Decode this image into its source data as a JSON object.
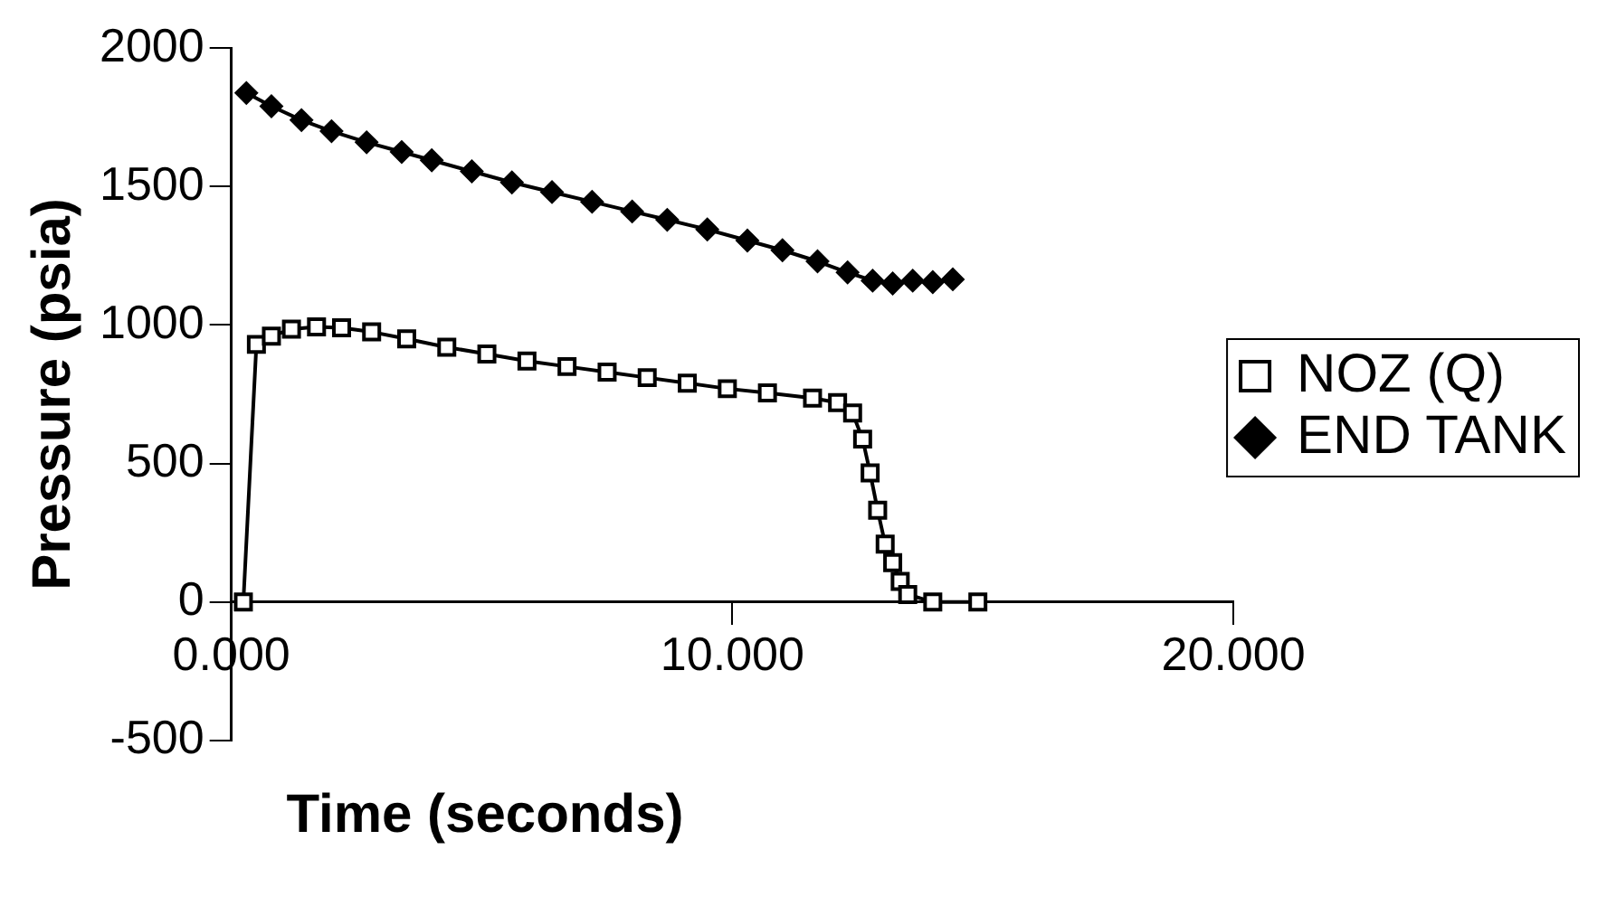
{
  "chart_data": {
    "type": "line",
    "xlabel": "Time (seconds)",
    "ylabel": "Pressure (psia)",
    "xlim": [
      0,
      20
    ],
    "xticks": [
      {
        "value": 0,
        "label": "0.000"
      },
      {
        "value": 10,
        "label": "10.000"
      },
      {
        "value": 20,
        "label": "20.000"
      }
    ],
    "ylim": [
      -500,
      2000
    ],
    "yticks": [
      -500,
      0,
      500,
      1000,
      1500,
      2000
    ],
    "grid": false,
    "legend": "right",
    "series": [
      {
        "name": "NOZ (Q)",
        "color": "#000000",
        "marker": "square",
        "x": [
          0.24,
          0.5,
          0.8,
          1.2,
          1.7,
          2.2,
          2.8,
          3.5,
          4.3,
          5.1,
          5.9,
          6.7,
          7.5,
          8.3,
          9.1,
          9.9,
          10.7,
          11.6,
          12.1,
          12.4,
          12.6,
          12.75,
          12.9,
          13.05,
          13.2,
          13.35,
          13.5,
          14.0,
          14.9
        ],
        "values": [
          0,
          930,
          960,
          985,
          993,
          990,
          975,
          950,
          920,
          895,
          870,
          850,
          830,
          810,
          790,
          770,
          755,
          736,
          720,
          682,
          588,
          466,
          331,
          209,
          142,
          74,
          27,
          0,
          0
        ]
      },
      {
        "name": "END TANK",
        "color": "#000000",
        "marker": "diamond",
        "x": [
          0.3,
          0.8,
          1.4,
          2.0,
          2.7,
          3.4,
          4.0,
          4.8,
          5.6,
          6.4,
          7.2,
          8.0,
          8.7,
          9.5,
          10.3,
          11.0,
          11.7,
          12.3,
          12.8,
          13.2,
          13.6,
          14.0,
          14.4
        ],
        "values": [
          1838,
          1790,
          1740,
          1700,
          1660,
          1625,
          1595,
          1555,
          1515,
          1480,
          1445,
          1410,
          1380,
          1345,
          1305,
          1270,
          1230,
          1190,
          1160,
          1150,
          1160,
          1155,
          1165
        ]
      }
    ]
  }
}
